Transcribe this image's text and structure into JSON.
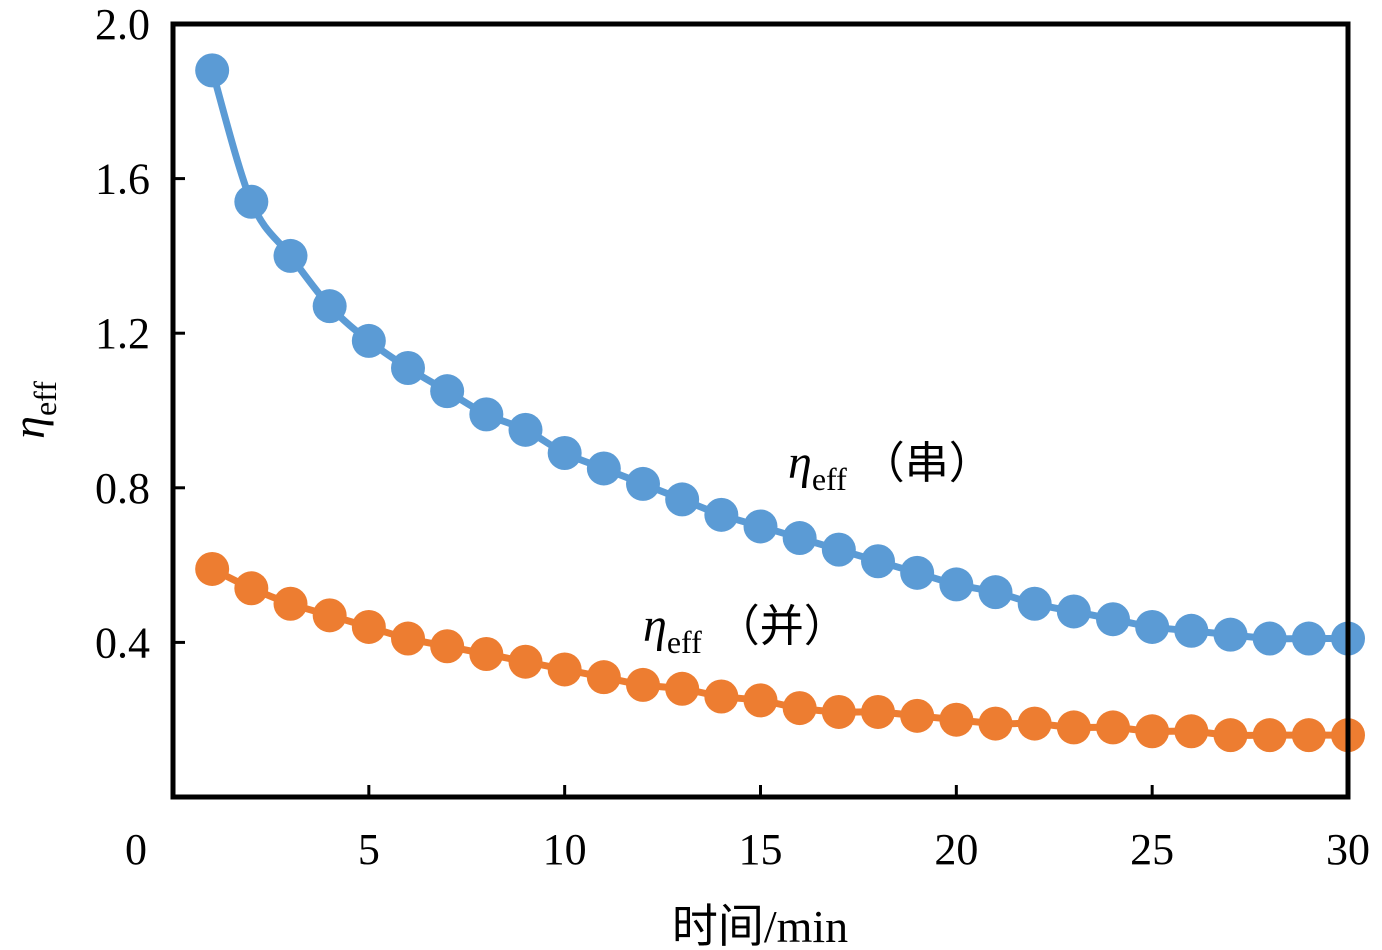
{
  "chart_data": {
    "type": "line",
    "title": "",
    "xlabel": "时间/min",
    "ylabel": "η",
    "ylabel_subscript": "eff",
    "xlim": [
      0,
      30
    ],
    "ylim": [
      0,
      2.0
    ],
    "x_ticks": [
      "0",
      "5",
      "10",
      "15",
      "20",
      "25",
      "30"
    ],
    "x_tick_values": [
      0,
      5,
      10,
      15,
      20,
      25,
      30
    ],
    "y_ticks": [
      "0.4",
      "0.8",
      "1.2",
      "1.6",
      "2.0"
    ],
    "y_tick_values": [
      0.4,
      0.8,
      1.2,
      1.6,
      2.0
    ],
    "grid": false,
    "x": [
      1,
      2,
      3,
      4,
      5,
      6,
      7,
      8,
      9,
      10,
      11,
      12,
      13,
      14,
      15,
      16,
      17,
      18,
      19,
      20,
      21,
      22,
      23,
      24,
      25,
      26,
      27,
      28,
      29,
      30
    ],
    "series": [
      {
        "name": "串",
        "label_symbol": "η",
        "label_subscript": "eff",
        "label_paren": "（串）",
        "color": "#5b9bd5",
        "values": [
          1.88,
          1.54,
          1.4,
          1.27,
          1.18,
          1.11,
          1.05,
          0.99,
          0.95,
          0.89,
          0.85,
          0.81,
          0.77,
          0.73,
          0.7,
          0.67,
          0.64,
          0.61,
          0.58,
          0.55,
          0.53,
          0.5,
          0.48,
          0.46,
          0.44,
          0.43,
          0.42,
          0.41,
          0.41,
          0.41
        ]
      },
      {
        "name": "并",
        "label_symbol": "η",
        "label_subscript": "eff",
        "label_paren": "（并）",
        "color": "#ed7d31",
        "values": [
          0.59,
          0.54,
          0.5,
          0.47,
          0.44,
          0.41,
          0.39,
          0.37,
          0.35,
          0.33,
          0.31,
          0.29,
          0.28,
          0.26,
          0.25,
          0.23,
          0.22,
          0.22,
          0.21,
          0.2,
          0.19,
          0.19,
          0.18,
          0.18,
          0.17,
          0.17,
          0.16,
          0.16,
          0.16,
          0.16
        ]
      }
    ]
  }
}
